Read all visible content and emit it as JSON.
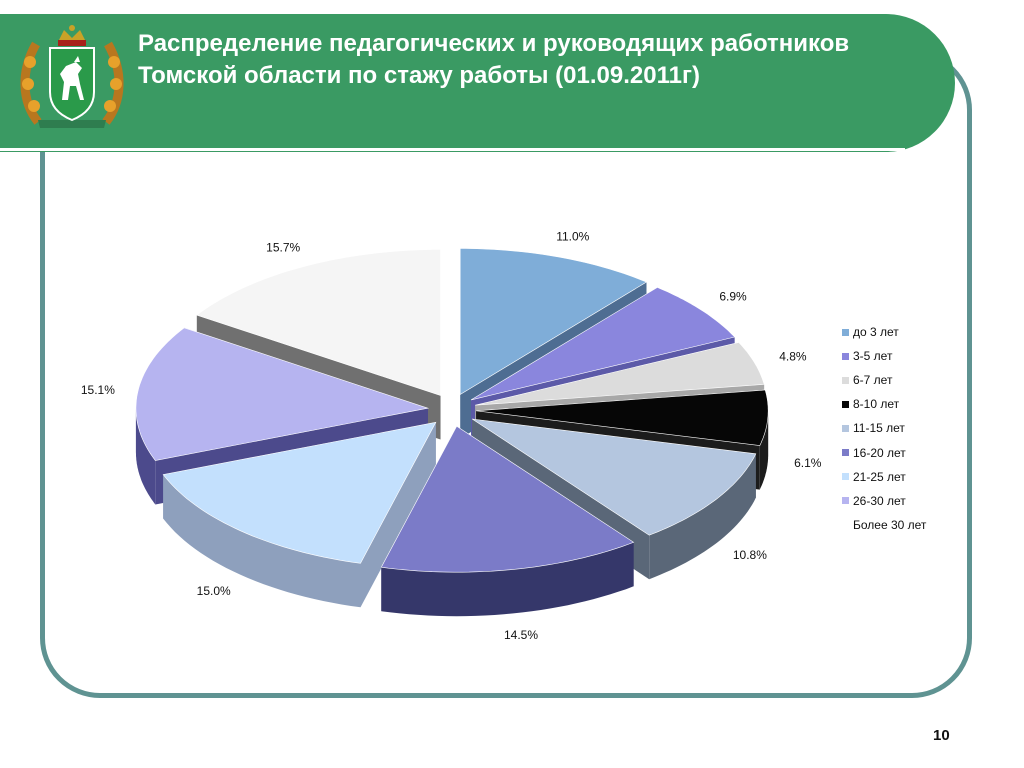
{
  "title": "Распределение педагогических и руководящих работников Томской области по стажу работы (01.09.2011г)",
  "page_number": "10",
  "coat_of_arms_icon": "tomsk-oblast-coat-of-arms",
  "chart_data": {
    "type": "pie",
    "categories": [
      "до 3 лет",
      "3-5 лет",
      "6-7 лет",
      "8-10 лет",
      "11-15 лет",
      "16-20 лет",
      "21-25 лет",
      "26-30 лет",
      "Более 30 лет"
    ],
    "values": [
      11.0,
      6.9,
      4.8,
      6.1,
      10.8,
      14.5,
      15.0,
      15.1,
      15.7
    ],
    "labels": [
      "11.0%",
      "6.9%",
      "4.8%",
      "6.1%",
      "10.8%",
      "14.5%",
      "15.0%",
      "15.1%",
      "15.7%"
    ],
    "colors": [
      "#7fadd8",
      "#8a86dd",
      "#dcdcdc",
      "#060606",
      "#b4c6df",
      "#7b7bc8",
      "#c3e0fd",
      "#b6b4f0",
      "#f5f5f5"
    ],
    "side_colors": [
      "#4e6d92",
      "#5c5aa8",
      "#a8a8a8",
      "#1c1c1c",
      "#5a6778",
      "#35376a",
      "#8ea0bd",
      "#4c4a8c",
      "#707070"
    ],
    "exploded": true,
    "legend_position": "right"
  }
}
